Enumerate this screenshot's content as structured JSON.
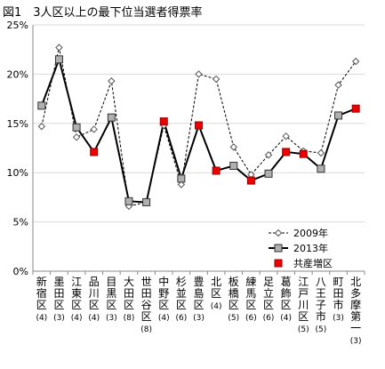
{
  "chart_data": {
    "type": "line",
    "title": "図1　3人区以上の最下位当選者得票率",
    "xlabel": "",
    "ylabel": "",
    "ylim": [
      0,
      25
    ],
    "y_ticks": [
      "0%",
      "5%",
      "10%",
      "15%",
      "20%",
      "25%"
    ],
    "grid": "horizontal",
    "legend_position": "bottom-right",
    "categories": [
      "新宿区(4)",
      "墨田区(3)",
      "江東区(4)",
      "品川区(4)",
      "目黒区(3)",
      "大田区(8)",
      "世田谷区(8)",
      "中野区(4)",
      "杉並区(6)",
      "豊島区(3)",
      "北区(4)",
      "板橋区(5)",
      "練馬区(6)",
      "足立区(6)",
      "葛飾区(4)",
      "江戸川区(5)",
      "八王子市(5)",
      "町田市(3)",
      "北多摩第一(3)"
    ],
    "series": [
      {
        "name": "2009年",
        "style": "dashed-diamond",
        "color": "#000000",
        "values": [
          14.7,
          22.7,
          13.6,
          14.4,
          19.3,
          6.6,
          7.0,
          14.8,
          8.8,
          20.0,
          19.5,
          12.6,
          9.8,
          11.8,
          13.7,
          12.2,
          12.0,
          18.9,
          21.3
        ]
      },
      {
        "name": "2013年",
        "style": "solid-square",
        "color": "#000000",
        "values": [
          16.8,
          21.5,
          14.6,
          12.1,
          15.6,
          7.1,
          7.0,
          15.2,
          9.4,
          14.8,
          10.2,
          10.7,
          9.2,
          9.9,
          12.1,
          11.9,
          10.4,
          15.8,
          16.5
        ]
      }
    ],
    "highlight": {
      "name": "共産増区",
      "color": "#ee0000",
      "indices": [
        3,
        7,
        9,
        10,
        12,
        14,
        15,
        18
      ]
    }
  }
}
